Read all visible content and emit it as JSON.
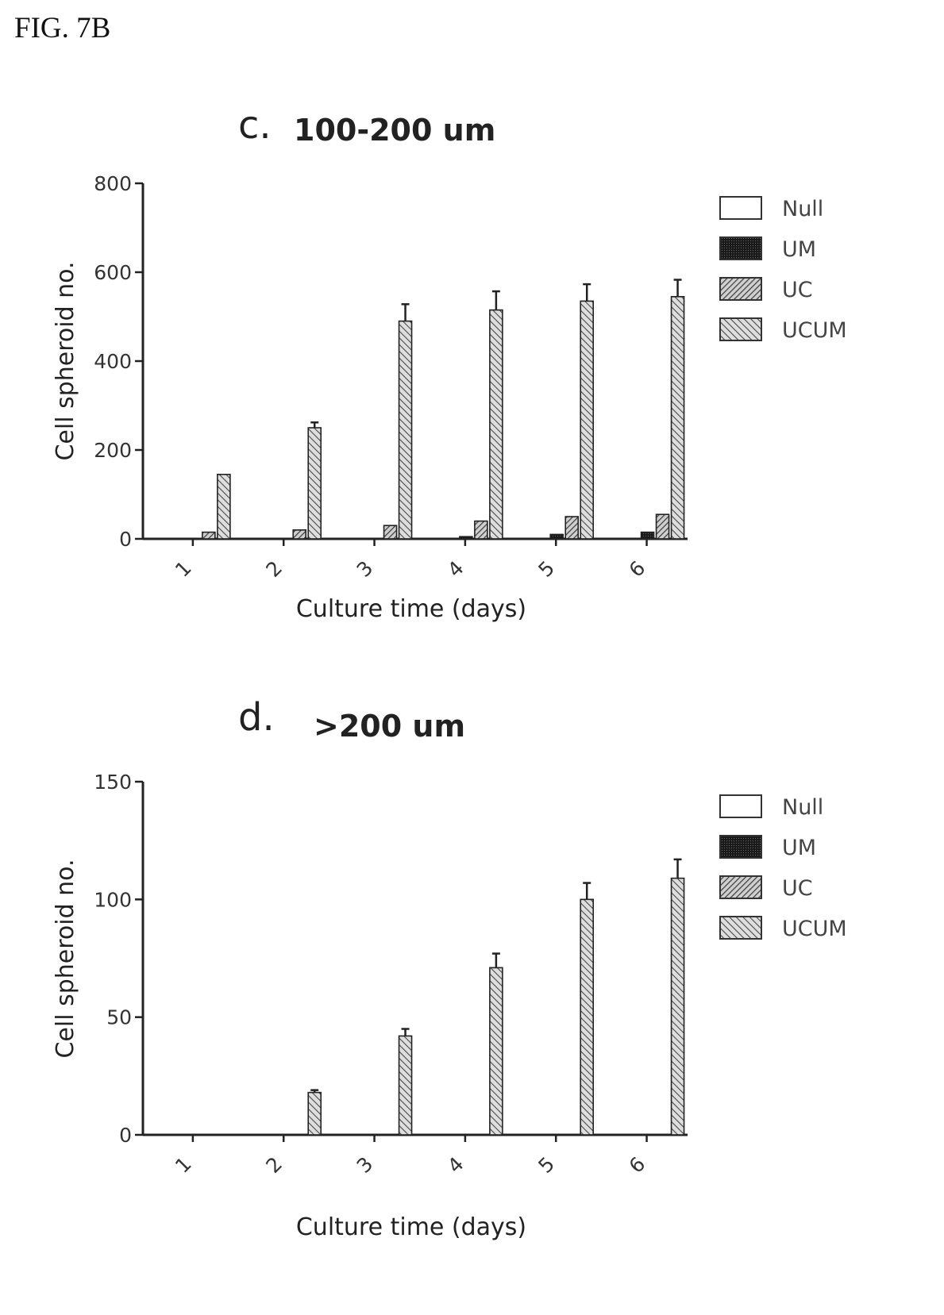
{
  "figure_label": "FIG. 7B",
  "colors": {
    "Null": "#ffffff",
    "UM": "#2a2a2a",
    "UC": "#6e6e6e",
    "UCUM": "#9a9a9a"
  },
  "chart_data": [
    {
      "type": "bar",
      "panel": "c.",
      "title": "100-200 um",
      "xlabel": "Culture time (days)",
      "ylabel": "Cell spheroid no.",
      "ylim": [
        0,
        800
      ],
      "yticks": [
        0,
        200,
        400,
        600,
        800
      ],
      "categories": [
        "1",
        "2",
        "3",
        "4",
        "5",
        "6"
      ],
      "legend_position": "right",
      "series": [
        {
          "name": "Null",
          "values": [
            0,
            0,
            0,
            0,
            0,
            0
          ],
          "errors": [
            0,
            0,
            0,
            0,
            0,
            0
          ]
        },
        {
          "name": "UM",
          "values": [
            0,
            0,
            0,
            5,
            10,
            15
          ],
          "errors": [
            0,
            0,
            0,
            0,
            0,
            0
          ]
        },
        {
          "name": "UC",
          "values": [
            15,
            20,
            30,
            40,
            50,
            55
          ],
          "errors": [
            0,
            0,
            0,
            0,
            0,
            0
          ]
        },
        {
          "name": "UCUM",
          "values": [
            145,
            250,
            490,
            515,
            535,
            545
          ],
          "errors": [
            0,
            12,
            38,
            42,
            38,
            38
          ]
        }
      ]
    },
    {
      "type": "bar",
      "panel": "d.",
      "title": ">200 um",
      "xlabel": "Culture time (days)",
      "ylabel": "Cell spheroid no.",
      "ylim": [
        0,
        150
      ],
      "yticks": [
        0,
        50,
        100,
        150
      ],
      "categories": [
        "1",
        "2",
        "3",
        "4",
        "5",
        "6"
      ],
      "legend_position": "right",
      "series": [
        {
          "name": "Null",
          "values": [
            0,
            0,
            0,
            0,
            0,
            0
          ],
          "errors": [
            0,
            0,
            0,
            0,
            0,
            0
          ]
        },
        {
          "name": "UM",
          "values": [
            0,
            0,
            0,
            0,
            0,
            0
          ],
          "errors": [
            0,
            0,
            0,
            0,
            0,
            0
          ]
        },
        {
          "name": "UC",
          "values": [
            0,
            0,
            0,
            0,
            0,
            0
          ],
          "errors": [
            0,
            0,
            0,
            0,
            0,
            0
          ]
        },
        {
          "name": "UCUM",
          "values": [
            0,
            18,
            42,
            71,
            100,
            109
          ],
          "errors": [
            0,
            1,
            3,
            6,
            7,
            8
          ]
        }
      ]
    }
  ]
}
